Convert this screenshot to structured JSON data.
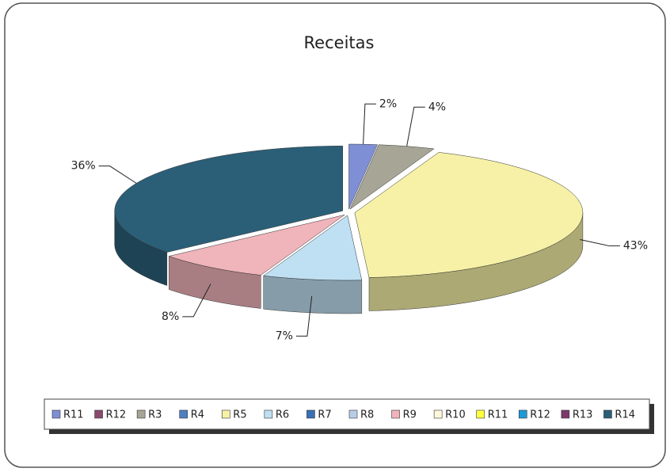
{
  "chart_data": {
    "type": "pie",
    "title": "Receitas",
    "categories": [
      "R11",
      "R12",
      "R3",
      "R4",
      "R5",
      "R6",
      "R7",
      "R8",
      "R9",
      "R10",
      "R11",
      "R12",
      "R13",
      "R14"
    ],
    "values": [
      2,
      0,
      4,
      0,
      43,
      7,
      0,
      0,
      8,
      0,
      0,
      0,
      0,
      36
    ],
    "value_labels": [
      "2%",
      null,
      "4%",
      null,
      "43%",
      "7%",
      null,
      null,
      "8%",
      null,
      null,
      null,
      null,
      "36%"
    ],
    "colors": [
      "#7f8fd6",
      "#8a4a6e",
      "#a6a596",
      "#4f7fc0",
      "#f6f1a6",
      "#bfe0f2",
      "#3a6fb5",
      "#b8cce8",
      "#f0b4bb",
      "#fff8d8",
      "#ffff40",
      "#1e9ad6",
      "#7a3a6a",
      "#2b5f78"
    ],
    "legend": "bottom"
  }
}
